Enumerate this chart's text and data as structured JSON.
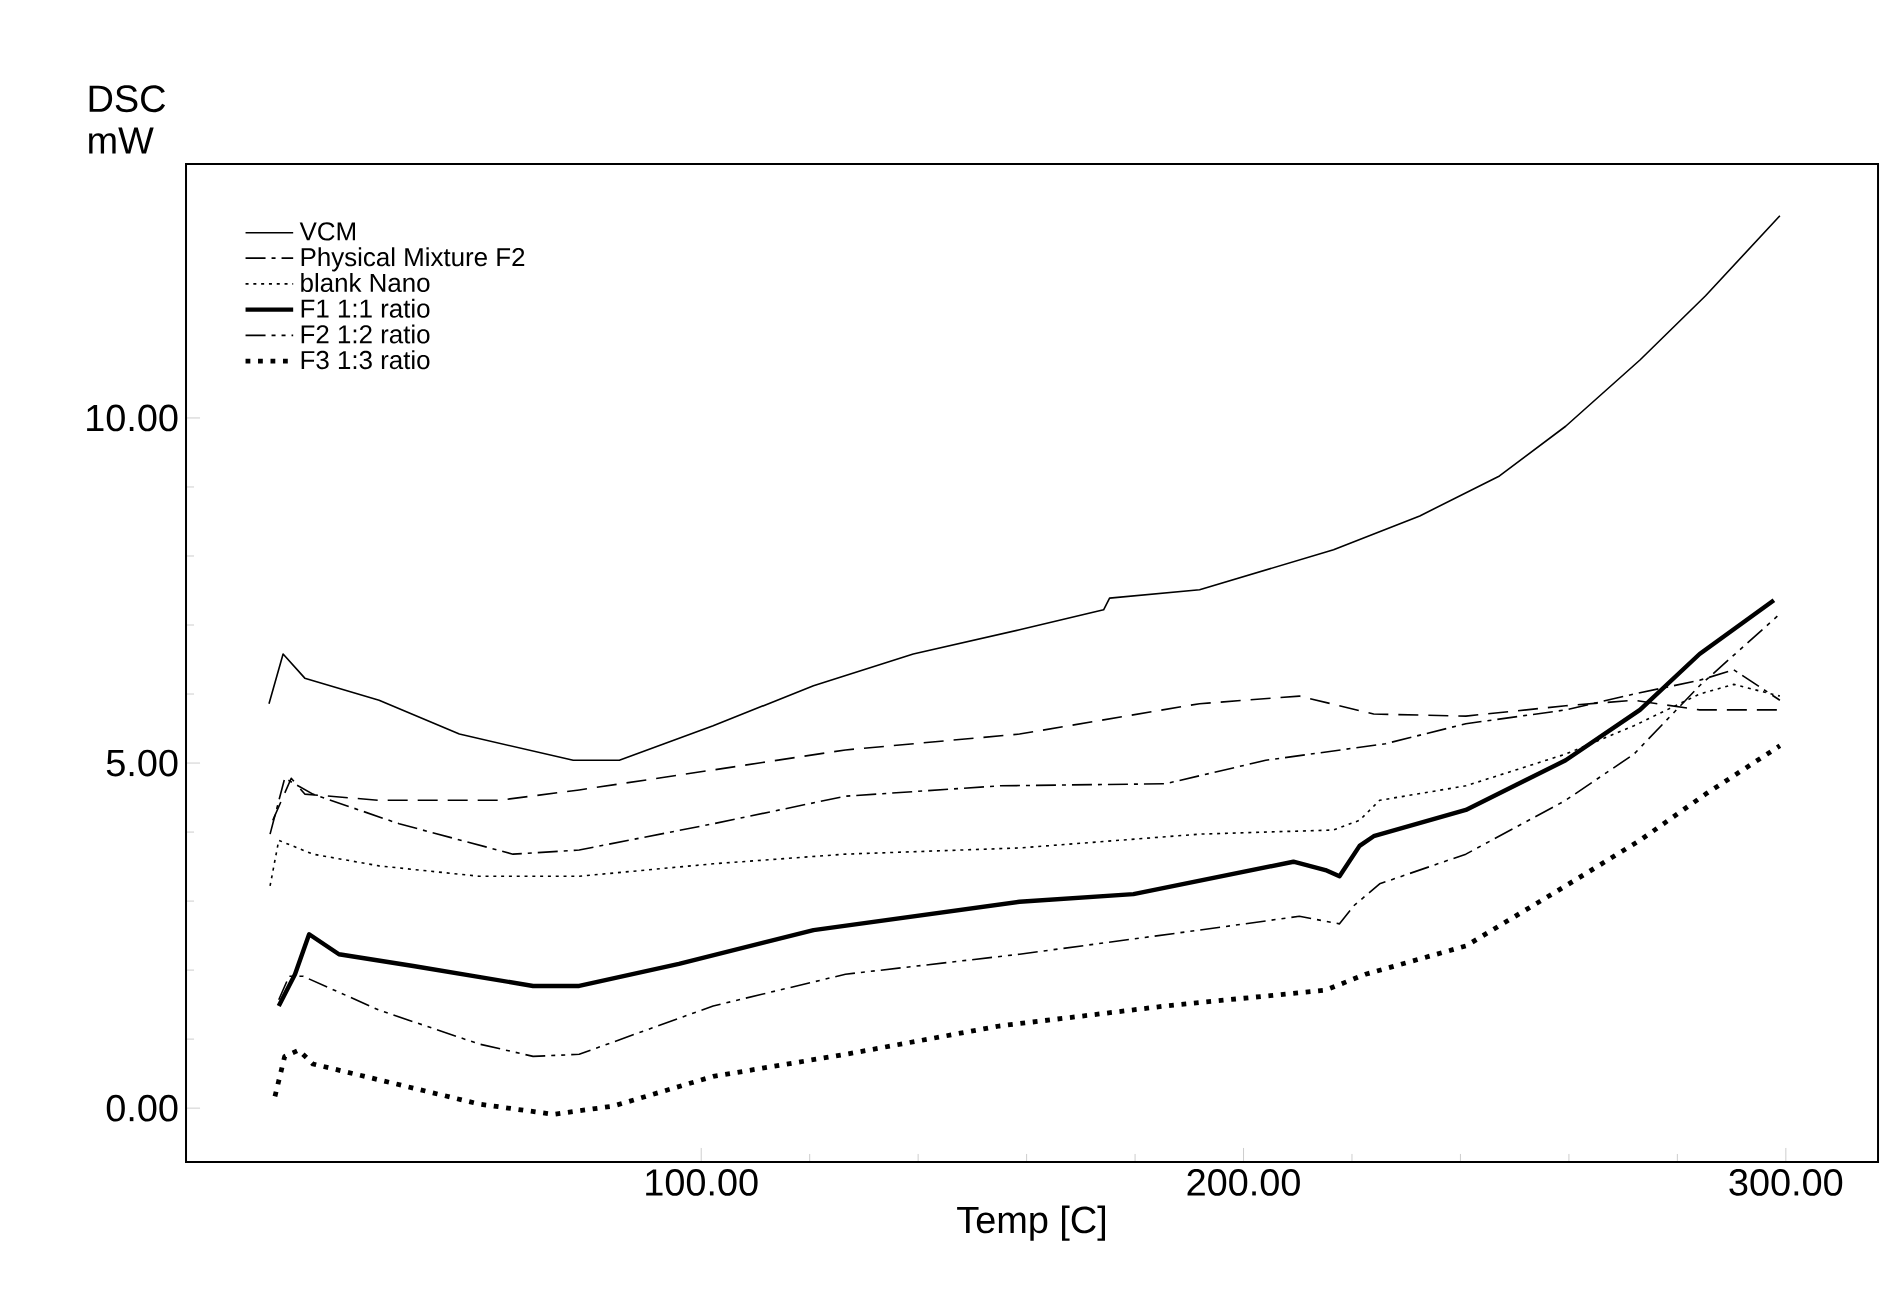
{
  "chart_data": {
    "type": "line",
    "xlabel": "Temp   [C]",
    "ylabel": "DSC mW",
    "xlim": [
      5,
      317
    ],
    "ylim": [
      -0.78,
      13.68
    ],
    "xticks": [
      {
        "value": 100,
        "label": "100.00"
      },
      {
        "value": 200,
        "label": "200.00"
      },
      {
        "value": 300,
        "label": "300.00"
      }
    ],
    "yticks": [
      {
        "value": 0,
        "label": "0.00"
      },
      {
        "value": 5,
        "label": "5.00"
      },
      {
        "value": 10,
        "label": "10.00"
      }
    ],
    "legend": "top left",
    "series": [
      {
        "name": "VCM",
        "color": "#000000",
        "line_style": "solid",
        "x": [
          20.3,
          22.9,
          26.9,
          40.6,
          55.4,
          76.4,
          84.9,
          102.2,
          120.7,
          139.1,
          158.7,
          174.2,
          175.3,
          191.9,
          216.6,
          232.5,
          247.2,
          259.4,
          273.1,
          285.2,
          298.9
        ],
        "values": [
          5.86,
          6.58,
          6.23,
          5.91,
          5.42,
          5.04,
          5.04,
          5.54,
          6.12,
          6.58,
          6.93,
          7.22,
          7.39,
          7.51,
          8.09,
          8.58,
          9.16,
          9.88,
          10.84,
          11.77,
          12.93
        ]
      },
      {
        "color": "#000000",
        "line_style": "dashed",
        "x": [
          21.0,
          24.4,
          26.9,
          40.6,
          62.7,
          77.5,
          102.2,
          126.6,
          158.7,
          191.9,
          210.3,
          224.0,
          241.0,
          259.4,
          272.0,
          284.1,
          298.9
        ],
        "values": [
          4.17,
          4.78,
          4.55,
          4.46,
          4.46,
          4.61,
          4.9,
          5.19,
          5.42,
          5.86,
          5.97,
          5.71,
          5.68,
          5.83,
          5.91,
          5.77,
          5.77
        ]
      },
      {
        "name": "Physical Mixture F2",
        "color": "#000000",
        "line_style": "dashdot",
        "x": [
          20.5,
          23.2,
          28.4,
          44.3,
          65.3,
          77.5,
          102.2,
          126.6,
          155.0,
          185.6,
          204.1,
          226.2,
          241.0,
          259.4,
          272.0,
          284.1,
          290.4,
          298.9
        ],
        "values": [
          3.97,
          4.78,
          4.55,
          4.12,
          3.68,
          3.74,
          4.12,
          4.52,
          4.67,
          4.7,
          5.04,
          5.28,
          5.57,
          5.77,
          6.0,
          6.2,
          6.35,
          5.91
        ]
      },
      {
        "name": "blank Nano",
        "color": "#000000",
        "line_style": "dotted",
        "x": [
          20.5,
          22.1,
          28.4,
          40.6,
          59.0,
          77.5,
          102.2,
          126.6,
          158.7,
          191.9,
          216.6,
          221.4,
          225.1,
          241.0,
          259.4,
          272.0,
          284.1,
          290.4,
          298.9
        ],
        "values": [
          3.22,
          3.88,
          3.68,
          3.51,
          3.36,
          3.36,
          3.54,
          3.68,
          3.77,
          3.97,
          4.03,
          4.17,
          4.46,
          4.67,
          5.13,
          5.54,
          6.0,
          6.14,
          5.97
        ]
      },
      {
        "name": "F1 1:1 ratio",
        "color": "#000000",
        "line_style": "solid",
        "x": [
          22.1,
          25.1,
          27.7,
          33.2,
          46.9,
          69.0,
          77.5,
          95.9,
          120.7,
          158.7,
          179.7,
          209.2,
          215.1,
          217.7,
          221.4,
          224.0,
          241.0,
          259.4,
          273.1,
          284.1,
          297.8
        ],
        "values": [
          1.48,
          1.94,
          2.52,
          2.23,
          2.06,
          1.77,
          1.77,
          2.09,
          2.58,
          2.99,
          3.1,
          3.57,
          3.45,
          3.36,
          3.8,
          3.94,
          4.32,
          5.04,
          5.77,
          6.58,
          7.36
        ]
      },
      {
        "name": "F2 1:2 ratio",
        "color": "#000000",
        "line_style": "dashdotdot",
        "x": [
          22.1,
          24.0,
          26.6,
          40.6,
          59.0,
          69.0,
          77.5,
          102.2,
          126.6,
          158.7,
          191.9,
          210.3,
          217.7,
          220.3,
          225.1,
          241.0,
          259.4,
          272.0,
          284.1,
          298.9
        ],
        "values": [
          1.57,
          1.91,
          1.91,
          1.42,
          0.93,
          0.75,
          0.78,
          1.48,
          1.94,
          2.23,
          2.58,
          2.78,
          2.67,
          2.93,
          3.25,
          3.68,
          4.46,
          5.13,
          6.12,
          7.16
        ]
      },
      {
        "name": "F3 1:3 ratio",
        "color": "#000000",
        "line_style": "dotted",
        "x": [
          21.4,
          23.2,
          25.8,
          28.4,
          40.6,
          59.0,
          72.7,
          83.8,
          102.2,
          126.6,
          155.0,
          185.6,
          215.1,
          222.5,
          241.0,
          259.4,
          273.1,
          285.2,
          298.9
        ],
        "values": [
          0.17,
          0.75,
          0.84,
          0.64,
          0.41,
          0.06,
          -0.09,
          0.03,
          0.46,
          0.78,
          1.19,
          1.48,
          1.71,
          1.94,
          2.35,
          3.22,
          3.88,
          4.55,
          5.25
        ]
      }
    ]
  }
}
